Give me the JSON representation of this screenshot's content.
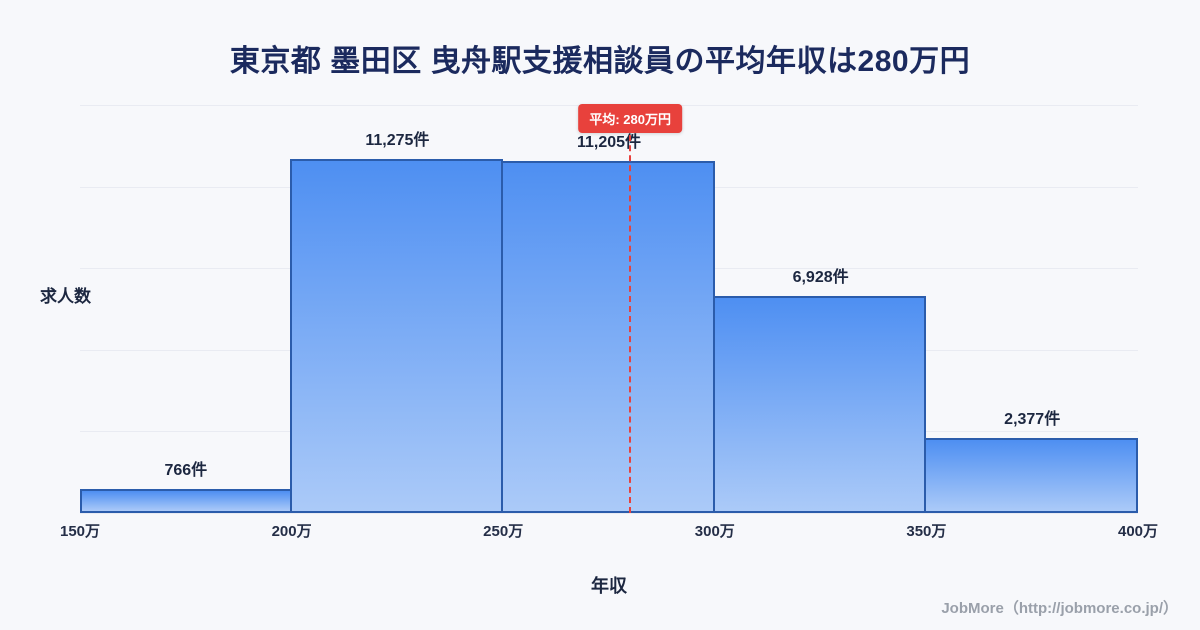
{
  "title": "東京都 墨田区 曳舟駅支援相談員の平均年収は280万円",
  "chart_data": {
    "type": "bar",
    "subtype": "histogram",
    "categories": [
      "150万-200万",
      "200万-250万",
      "250万-300万",
      "300万-350万",
      "350万-400万"
    ],
    "bin_edges": [
      150,
      200,
      250,
      300,
      350,
      400
    ],
    "bin_edge_labels": [
      "150万",
      "200万",
      "250万",
      "300万",
      "350万",
      "400万"
    ],
    "values": [
      766,
      11275,
      11205,
      6928,
      2377
    ],
    "value_labels": [
      "766件",
      "11,275件",
      "11,205件",
      "6,928件",
      "2,377件"
    ],
    "xlabel": "年収",
    "ylabel": "求人数",
    "ylim": [
      0,
      13000
    ],
    "grid": "horizontal-faint",
    "legend": "none",
    "average": {
      "value": 280,
      "unit": "万円",
      "label": "平均: 280万円"
    },
    "colors": {
      "bar_gradient_top": "#4e8ff2",
      "bar_gradient_bottom": "#abcaf8",
      "bar_border": "#2b5cab",
      "average_line": "#e8413c",
      "average_badge_bg": "#e8413c",
      "average_badge_text": "#ffffff",
      "title_text": "#1b2a5e",
      "label_text": "#1c2740",
      "background": "#f7f8fb"
    }
  },
  "footer": {
    "credit": "JobMore（http://jobmore.co.jp/）"
  }
}
